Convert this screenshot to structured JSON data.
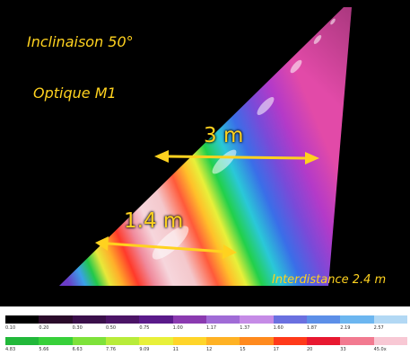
{
  "scene": {
    "inclinaison": "Inclinaison 50°",
    "optique": "Optique M1",
    "width_label": "3 m",
    "band_label": "1.4 m",
    "interdistance": "Interdistance 2.4 m"
  },
  "legend": {
    "row1": {
      "colors": [
        "#000000",
        "#2a0a2a",
        "#3a0f4a",
        "#4b1466",
        "#5a1a8a",
        "#8a3ab0",
        "#a06bd6",
        "#c58be6",
        "#6a70e0",
        "#5c8fe8",
        "#6cb6f0",
        "#b2d8f4"
      ],
      "values": [
        "0.10",
        "0.20",
        "0.30",
        "0.50",
        "0.75",
        "1.00",
        "1.17",
        "1.37",
        "1.60",
        "1.87",
        "2.19",
        "2.57"
      ]
    },
    "row2": {
      "colors": [
        "#22b83a",
        "#38d03a",
        "#7ee23a",
        "#b8ec3a",
        "#e8f03a",
        "#ffd52a",
        "#ffb224",
        "#ff8a1e",
        "#ff3a1a",
        "#e81830",
        "#f27a90",
        "#f8c8d4"
      ],
      "values": [
        "4.83",
        "5.66",
        "6.63",
        "7.76",
        "9.09",
        "11",
        "12",
        "15",
        "17",
        "20",
        "33",
        "45.0x"
      ]
    }
  }
}
